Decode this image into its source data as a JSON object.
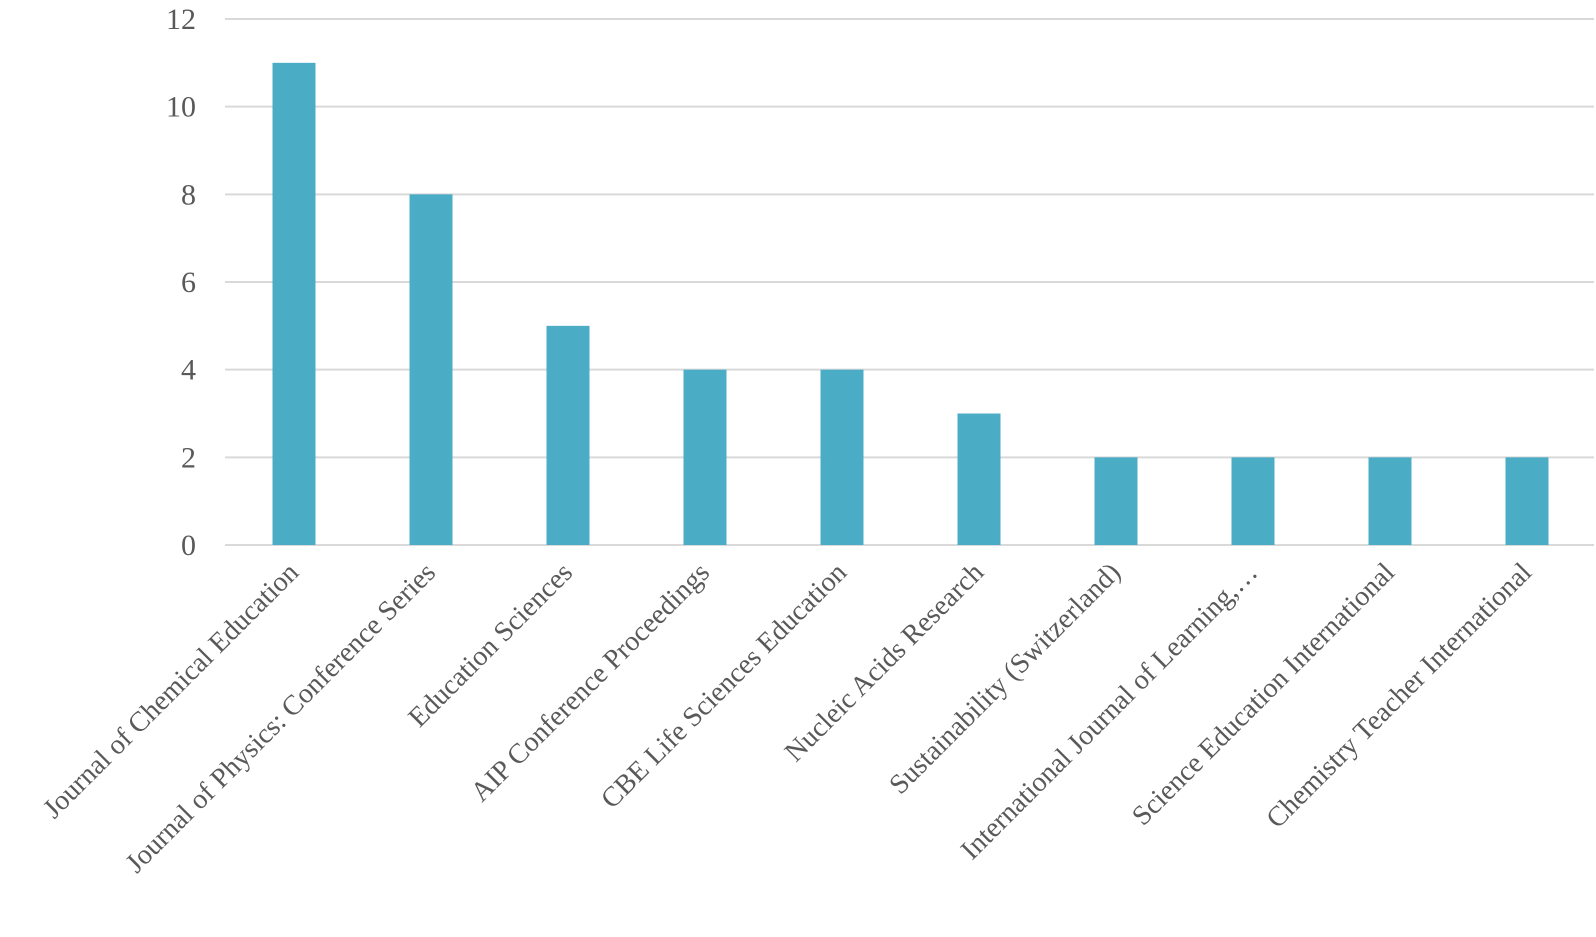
{
  "chart_data": {
    "type": "bar",
    "title": "",
    "xlabel": "",
    "ylabel": "",
    "categories": [
      "Journal of Chemical Education",
      "Journal of Physics: Conference Series",
      "Education Sciences",
      "AIP Conference Proceedings",
      "CBE Life Sciences Education",
      "Nucleic Acids Research",
      "Sustainability (Switzerland)",
      "International Journal of Learning,…",
      "Science Education International",
      "Chemistry Teacher International"
    ],
    "values": [
      11,
      8,
      5,
      4,
      4,
      3,
      2,
      2,
      2,
      2
    ],
    "ylim": [
      0,
      12
    ],
    "yticks": [
      "0",
      "2",
      "4",
      "6",
      "8",
      "10",
      "12"
    ],
    "grid": true,
    "legend": "none",
    "bar_color": "#4bacc6",
    "category_label_rotation": "-45deg"
  }
}
